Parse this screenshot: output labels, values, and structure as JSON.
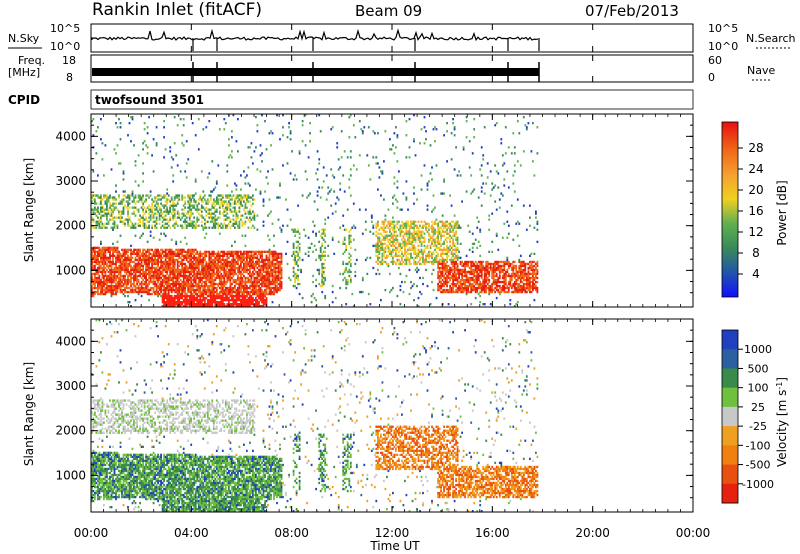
{
  "header": {
    "station": "Rankin Inlet (fitACF)",
    "beam": "Beam 09",
    "date": "07/Feb/2013"
  },
  "left_labels": {
    "nsky": "N.Sky",
    "freq": "Freq.",
    "freq_unit": "[MHz]",
    "cpid": "CPID"
  },
  "right_labels": {
    "nsearch": "N.Search",
    "nave": "Nave"
  },
  "cpid_text": "twofsound 3501",
  "colors": {
    "power_scale": [
      "#1a1aff",
      "#2350b0",
      "#3a8a5a",
      "#4ab05a",
      "#f0d020",
      "#f5a030",
      "#f06818",
      "#e82010"
    ],
    "velocity_scale": [
      "#2040c0",
      "#2a5fa0",
      "#3a8a4a",
      "#70c040",
      "#c8c8c8",
      "#f0a020",
      "#f08010",
      "#e85010",
      "#e82010"
    ]
  },
  "chart_data": [
    {
      "type": "line",
      "title": "N.Sky / N.Search",
      "ylabels_left": [
        "10^5",
        "10^0"
      ],
      "ylabels_right": [
        "10^5",
        "10^0"
      ]
    },
    {
      "type": "line",
      "title": "Freq / Nave",
      "ylabels_left": [
        "18",
        "8"
      ],
      "ylabels_right": [
        "60",
        "0"
      ]
    },
    {
      "type": "heatmap",
      "title": "Power",
      "ylabel": "Slant Range [km]",
      "colorbar_label": "Power [dB]",
      "colorbar_ticks": [
        "28",
        "24",
        "20",
        "16",
        "12",
        "8",
        "4"
      ],
      "y_ticks": [
        "4000",
        "3000",
        "2000",
        "1000"
      ],
      "ylim": [
        180,
        4500
      ],
      "xlim": [
        "00:00",
        "24:00"
      ],
      "features": [
        {
          "time_start": 0.0,
          "time_end": 7.5,
          "range_low": 400,
          "range_high": 1400,
          "level": "high"
        },
        {
          "time_start": 3.0,
          "time_end": 7.0,
          "range_low": 200,
          "range_high": 500,
          "level": "very-high"
        },
        {
          "time_start": 11.5,
          "time_end": 14.5,
          "range_low": 1200,
          "range_high": 2000,
          "level": "medium"
        },
        {
          "time_start": 14.0,
          "time_end": 17.8,
          "range_low": 500,
          "range_high": 1100,
          "level": "high"
        }
      ]
    },
    {
      "type": "heatmap",
      "title": "Velocity",
      "ylabel": "Slant Range [km]",
      "colorbar_label": "Velocity [m s^-1]",
      "colorbar_ticks": [
        "1000",
        "500",
        "100",
        "25",
        "-25",
        "-100",
        "-500",
        "-1000"
      ],
      "y_ticks": [
        "4000",
        "3000",
        "2000",
        "1000"
      ],
      "xlabel": "Time UT",
      "x_ticks": [
        "00:00",
        "04:00",
        "08:00",
        "12:00",
        "16:00",
        "20:00",
        "00:00"
      ],
      "ylim": [
        180,
        4500
      ],
      "xlim": [
        "00:00",
        "24:00"
      ],
      "features": [
        {
          "time_start": 0.0,
          "time_end": 7.5,
          "range_low": 400,
          "range_high": 1600,
          "level": "positive"
        },
        {
          "time_start": 0.0,
          "time_end": 6.0,
          "range_low": 1900,
          "range_high": 2600,
          "level": "near-zero"
        },
        {
          "time_start": 11.5,
          "time_end": 16.0,
          "range_low": 1200,
          "range_high": 2300,
          "level": "negative"
        },
        {
          "time_start": 14.0,
          "time_end": 17.8,
          "range_low": 400,
          "range_high": 1000,
          "level": "negative"
        }
      ]
    }
  ]
}
